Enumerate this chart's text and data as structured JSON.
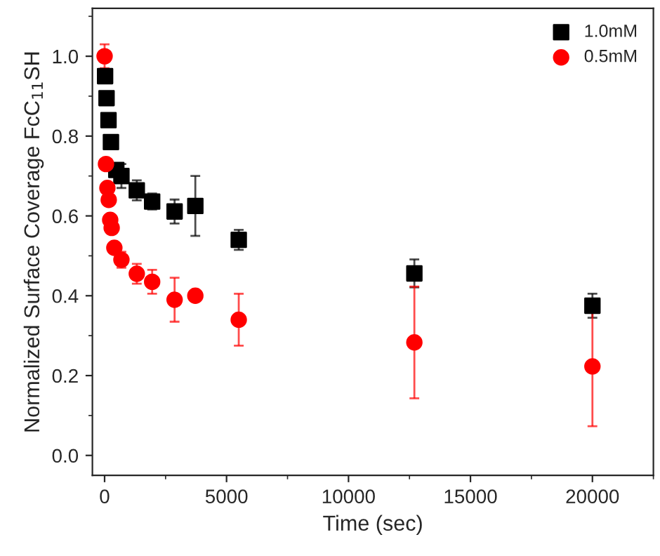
{
  "chart_data": {
    "type": "scatter",
    "xlabel": "Time (sec)",
    "ylabel": "Normalized Surface Coverage FcC$_{11}$SH",
    "xlim": [
      -500,
      22500
    ],
    "ylim": [
      -0.05,
      1.12
    ],
    "xticks": [
      0,
      5000,
      10000,
      15000,
      20000
    ],
    "yticks": [
      {
        "value": 0,
        "label": "0.0"
      },
      0.2,
      0.4,
      0.6,
      0.8,
      {
        "value": 1,
        "label": "1.0"
      }
    ],
    "legend": "top right",
    "grid": false,
    "series": [
      {
        "name": "1.0mM",
        "color": "#000000",
        "marker": "square",
        "x": [
          20,
          80,
          160,
          260,
          480,
          690,
          1320,
          1950,
          2870,
          3720,
          5500,
          12700,
          20000
        ],
        "values": [
          0.95,
          0.895,
          0.84,
          0.785,
          0.715,
          0.7,
          0.664,
          0.636,
          0.611,
          0.625,
          0.54,
          0.456,
          0.375
        ],
        "errors": [
          null,
          null,
          null,
          null,
          null,
          0.03,
          0.025,
          0.02,
          0.03,
          0.075,
          0.025,
          0.035,
          0.03
        ]
      },
      {
        "name": "0.5mM",
        "color": "#ff0000",
        "marker": "circle",
        "x": [
          0,
          57,
          115,
          170,
          230,
          290,
          400,
          690,
          1320,
          1950,
          2870,
          3720,
          5500,
          12700,
          20000
        ],
        "values": [
          1.0,
          0.73,
          0.67,
          0.64,
          0.59,
          0.57,
          0.52,
          0.49,
          0.455,
          0.435,
          0.39,
          0.4,
          0.34,
          0.283,
          0.223
        ],
        "errors": [
          0.03,
          null,
          null,
          null,
          null,
          null,
          null,
          0.02,
          0.025,
          0.03,
          0.055,
          null,
          0.065,
          0.14,
          0.15
        ]
      }
    ]
  }
}
